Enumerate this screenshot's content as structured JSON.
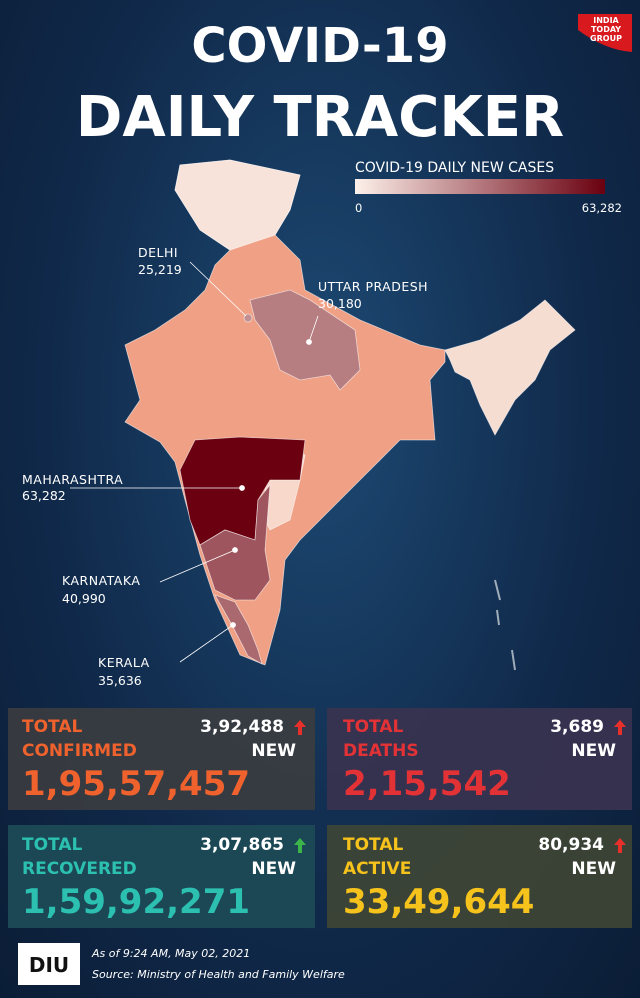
{
  "header": {
    "title_line1": "COVID-19",
    "title_line2": "DAILY TRACKER",
    "logo_lines": [
      "INDIA",
      "TODAY",
      "GROUP"
    ]
  },
  "legend": {
    "title": "COVID-19 DAILY NEW CASES",
    "min": 0,
    "max": {
      "value": 63282,
      "label": "63,282"
    },
    "colors": [
      "#fdf0ea",
      "#6a0010"
    ]
  },
  "map_labels": [
    {
      "name": "DELHI",
      "value": 25219,
      "label": "25,219"
    },
    {
      "name": "UTTAR PRADESH",
      "value": 30180,
      "label": "30,180"
    },
    {
      "name": "MAHARASHTRA",
      "value": 63282,
      "label": "63,282"
    },
    {
      "name": "KARNATAKA",
      "value": 40990,
      "label": "40,990"
    },
    {
      "name": "KERALA",
      "value": 35636,
      "label": "35,636"
    }
  ],
  "cards": [
    {
      "line1": "TOTAL",
      "line2": "CONFIRMED",
      "total": "1,95,57,457",
      "new_value": "3,92,488",
      "new_label": "NEW"
    },
    {
      "line1": "TOTAL",
      "line2": "DEATHS",
      "total": "2,15,542",
      "new_value": "3,689",
      "new_label": "NEW"
    },
    {
      "line1": "TOTAL",
      "line2": "RECOVERED",
      "total": "1,59,92,271",
      "new_value": "3,07,865",
      "new_label": "NEW"
    },
    {
      "line1": "TOTAL",
      "line2": "ACTIVE",
      "total": "33,49,644",
      "new_value": "80,934",
      "new_label": "NEW"
    }
  ],
  "footer": {
    "logo": "DIU",
    "date": "As of 9:24 AM, May 02, 2021",
    "source": "Source: Ministry of Health and Family Welfare"
  }
}
